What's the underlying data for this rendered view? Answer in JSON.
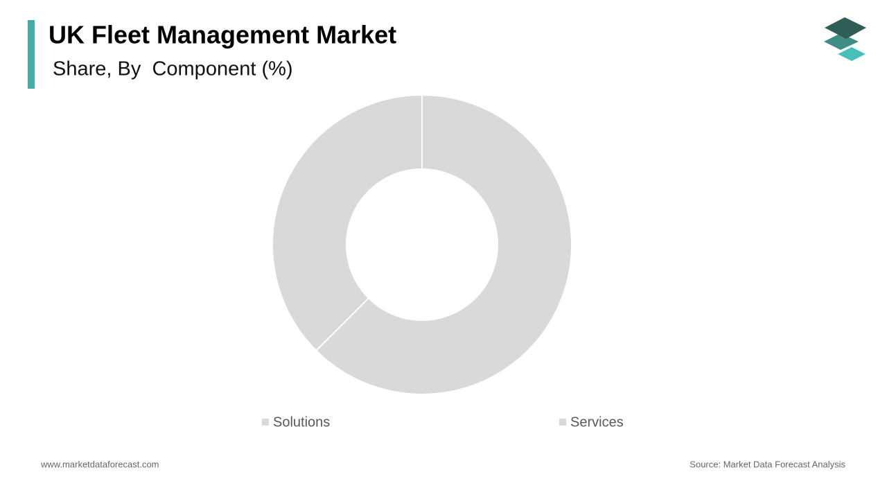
{
  "chart_data": {
    "type": "donut",
    "title": "UK Fleet Management Market",
    "subtitle": "Share, By  Component (%)",
    "categories": [
      "Solutions",
      "Services"
    ],
    "values": [
      62.5,
      37.5
    ],
    "colors": [
      "#d9d9d9",
      "#d9d9d9"
    ],
    "website": "www.marketdataforecast.com",
    "source": "Source: Market Data Forecast Analysis"
  }
}
